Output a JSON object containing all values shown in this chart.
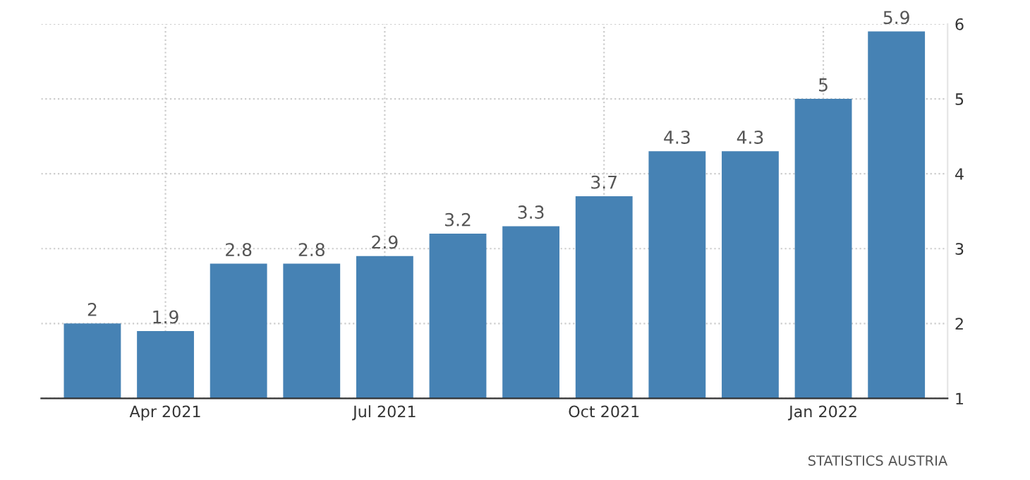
{
  "chart_data": {
    "type": "bar",
    "categories": [
      null,
      "Apr 2021",
      null,
      null,
      "Jul 2021",
      null,
      null,
      "Oct 2021",
      null,
      null,
      "Jan 2022",
      null
    ],
    "values": [
      2,
      1.9,
      2.8,
      2.8,
      2.9,
      3.2,
      3.3,
      3.7,
      4.3,
      4.3,
      5,
      5.9
    ],
    "color": "#4682b4",
    "ylim": [
      1,
      6
    ],
    "yticks": [
      1,
      2,
      3,
      4,
      5,
      6
    ],
    "grid": true,
    "data_labels": true,
    "annotations": [
      "STATISTICS AUSTRIA"
    ]
  }
}
